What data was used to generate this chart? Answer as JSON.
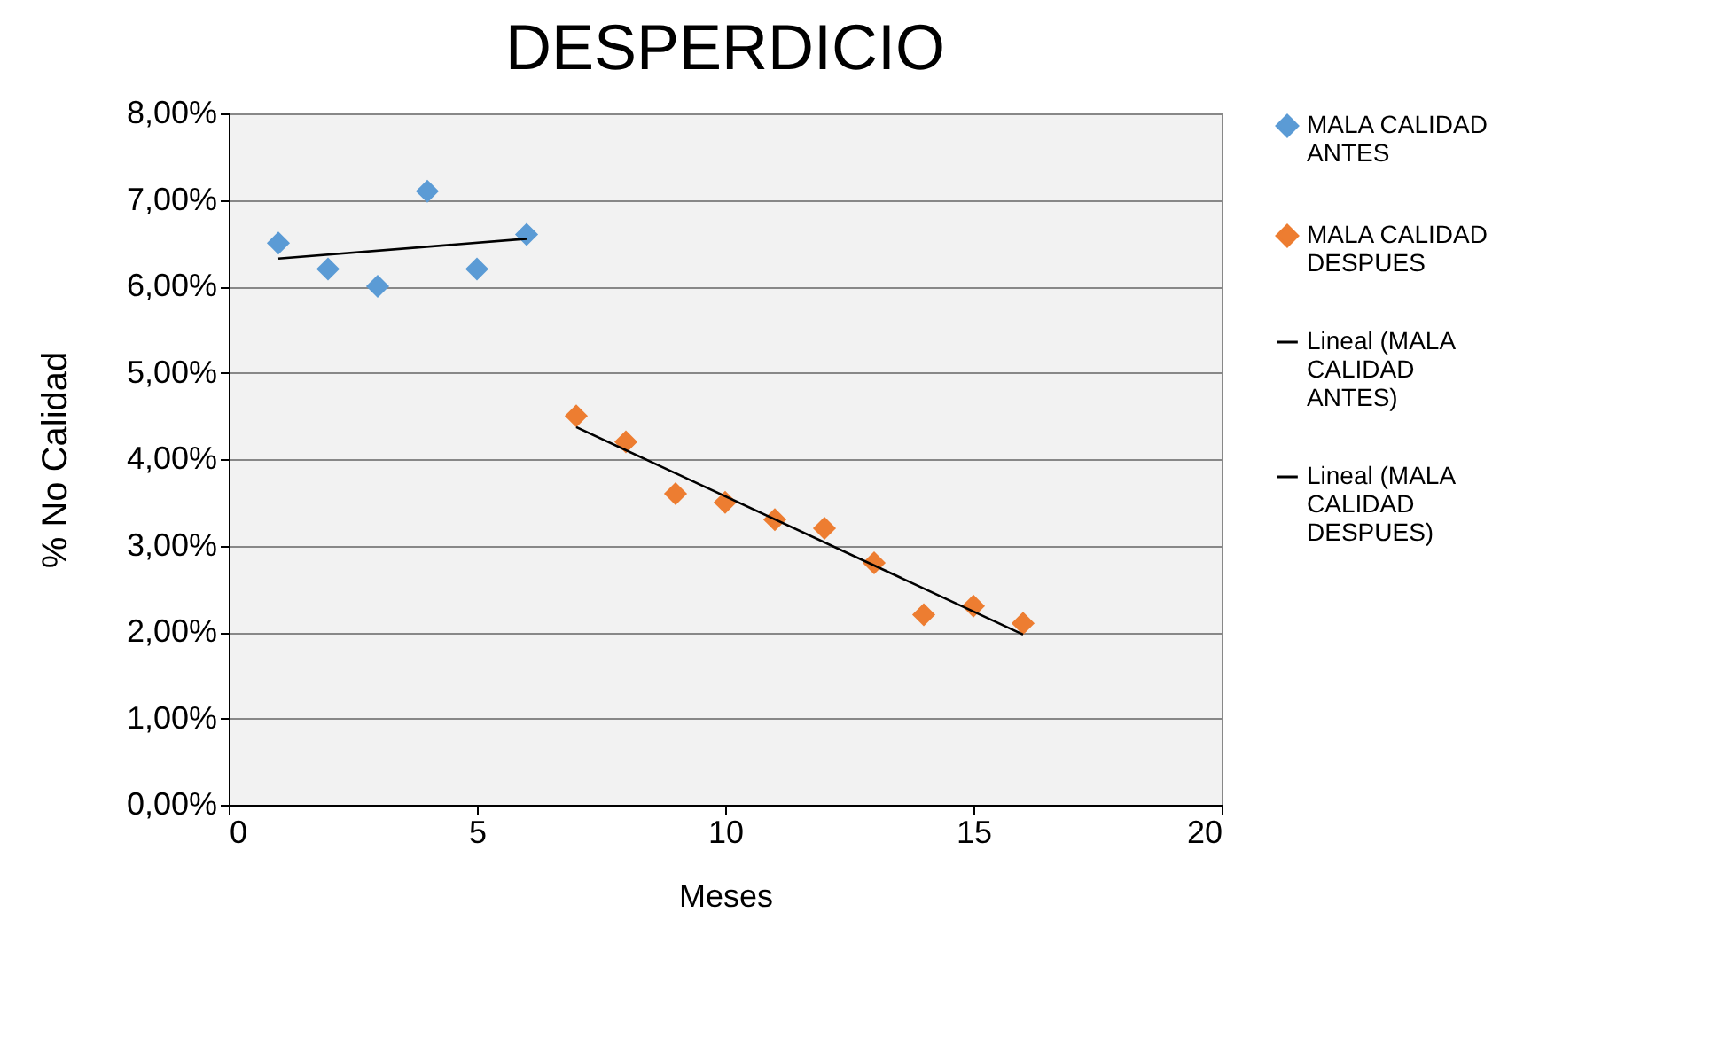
{
  "chart_data": {
    "type": "scatter",
    "title": "DESPERDICIO",
    "xlabel": "Meses",
    "ylabel": "% No  Calidad",
    "series": [
      {
        "name": "MALA CALIDAD ANTES",
        "marker": "diamond",
        "color": "#5b9bd5",
        "x": [
          1,
          2,
          3,
          4,
          5,
          6
        ],
        "values": [
          6.5,
          6.2,
          6.0,
          7.1,
          6.2,
          6.6
        ]
      },
      {
        "name": "MALA CALIDAD DESPUES",
        "marker": "diamond",
        "color": "#ed7d31",
        "x": [
          7,
          8,
          9,
          10,
          11,
          12,
          13,
          14,
          15,
          16
        ],
        "values": [
          4.5,
          4.2,
          3.6,
          3.5,
          3.3,
          3.2,
          2.8,
          2.2,
          2.3,
          2.1
        ]
      },
      {
        "name": "Lineal (MALA CALIDAD ANTES)",
        "type": "line",
        "marker": "none",
        "color": "#000000",
        "x": [
          1,
          6
        ],
        "values": [
          6.32,
          6.55
        ]
      },
      {
        "name": "Lineal (MALA CALIDAD DESPUES)",
        "type": "line",
        "marker": "none",
        "color": "#000000",
        "x": [
          7,
          16
        ],
        "values": [
          4.37,
          1.97
        ]
      }
    ],
    "xlim": [
      0,
      20
    ],
    "xticks": [
      0,
      5,
      10,
      15,
      20
    ],
    "ylim": [
      0,
      8
    ],
    "yticks": [
      {
        "value": 0,
        "label": "0,00%"
      },
      {
        "value": 1,
        "label": "1,00%"
      },
      {
        "value": 2,
        "label": "2,00%"
      },
      {
        "value": 3,
        "label": "3,00%"
      },
      {
        "value": 4,
        "label": "4,00%"
      },
      {
        "value": 5,
        "label": "5,00%"
      },
      {
        "value": 6,
        "label": "6,00%"
      },
      {
        "value": 7,
        "label": "7,00%"
      },
      {
        "value": 8,
        "label": "8,00%"
      }
    ],
    "grid": "y",
    "legend": "right",
    "line_style": "solid"
  }
}
